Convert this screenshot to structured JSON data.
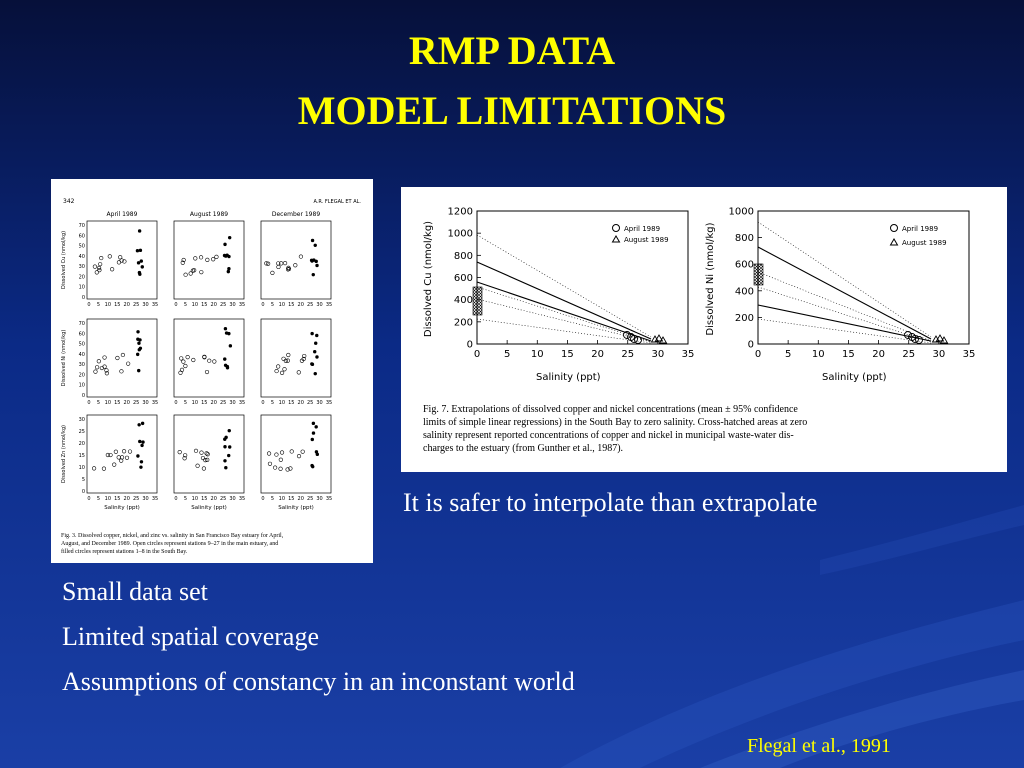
{
  "slide": {
    "title_line1": "RMP DATA",
    "title_line2": "MODEL LIMITATIONS",
    "interp_note": "It is safer to interpolate than extrapolate",
    "bullets": [
      "Small data set",
      "Limited spatial coverage",
      "Assumptions of constancy in an inconstant world"
    ],
    "citation": "Flegal et al., 1991"
  },
  "colors": {
    "title": "#ffff00",
    "text": "#ffffff",
    "citation": "#ffff00",
    "background": "#0b2a86"
  },
  "figure_left": {
    "page_number": "342",
    "running_head": "A.R. FLEGAL ET AL.",
    "column_titles": [
      "April 1989",
      "August 1989",
      "December 1989"
    ],
    "row_ylabels": [
      "Dissolved Cu (nmol/kg)",
      "Dissolved Ni (nmol/kg)",
      "Dissolved Zn (nmol/kg)"
    ],
    "y_ticks_cu_ni": [
      "70",
      "60",
      "50",
      "40",
      "30",
      "20",
      "10",
      "0"
    ],
    "y_ticks_zn": [
      "30",
      "25",
      "20",
      "15",
      "10",
      "5",
      "0"
    ],
    "x_ticks": [
      "0",
      "5",
      "10",
      "15",
      "20",
      "25",
      "30",
      "35"
    ],
    "xlabel": "Salinity (ppt)",
    "caption": [
      "Fig. 3. Dissolved copper, nickel, and zinc vs. salinity in San Francisco Bay estuary for April,",
      "August, and December 1989. Open circles represent stations 9–27 in the main estuary, and",
      "filled circles represent stations 1–8 in the South Bay."
    ]
  },
  "figure_right": {
    "cu": {
      "ylabel": "Dissolved Cu (nmol/kg)",
      "y_ticks": [
        "1200",
        "1000",
        "800",
        "600",
        "400",
        "200",
        "0"
      ],
      "x_ticks": [
        "0",
        "5",
        "10",
        "15",
        "20",
        "25",
        "30",
        "35"
      ],
      "xlabel": "Salinity (ppt)",
      "legend": [
        "April 1989",
        "August 1989"
      ]
    },
    "ni": {
      "ylabel": "Dissolved Ni (nmol/kg)",
      "y_ticks": [
        "1000",
        "800",
        "600",
        "400",
        "200",
        "0"
      ],
      "x_ticks": [
        "0",
        "5",
        "10",
        "15",
        "20",
        "25",
        "30",
        "35"
      ],
      "xlabel": "Salinity (ppt)",
      "legend": [
        "April 1989",
        "August 1989"
      ]
    },
    "caption": [
      "Fig. 7. Extrapolations of dissolved copper and nickel concentrations (mean ± 95% confidence",
      "limits of simple linear regressions) in the South Bay to zero salinity. Cross-hatched areas at zero",
      "salinity represent reported concentrations of copper and nickel in municipal waste-water dis-",
      "charges to the estuary (from Gunther et al., 1987)."
    ]
  }
}
